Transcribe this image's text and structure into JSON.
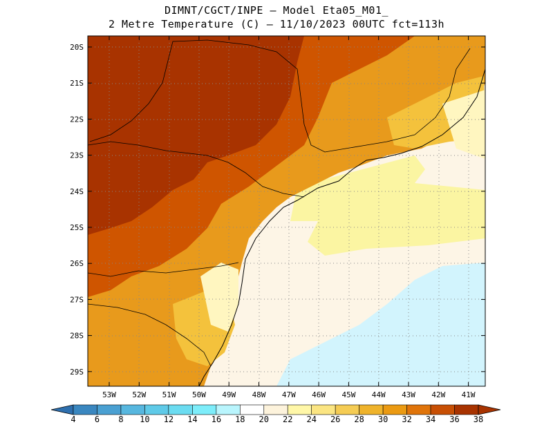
{
  "header": {
    "title_line1": "DIMNT/CGCT/INPE –  Model Eta05_M01_",
    "title_line2": "2 Metre Temperature (C) –  11/10/2023 00UTC fct=113h"
  },
  "map": {
    "lat_labels": [
      "20S",
      "21S",
      "22S",
      "23S",
      "24S",
      "25S",
      "26S",
      "27S",
      "28S",
      "29S"
    ],
    "lon_labels": [
      "53W",
      "52W",
      "51W",
      "50W",
      "49W",
      "48W",
      "47W",
      "46W",
      "45W",
      "44W",
      "43W",
      "42W",
      "41W"
    ],
    "regions": [
      "land-very-hot",
      "land-hot",
      "land-warm",
      "coast-mild",
      "ocean-cool",
      "ocean-cold"
    ],
    "colors": {
      "land_very_hot": "#a83300",
      "land_hot": "#cf5500",
      "land_warm": "#e89a1c",
      "land_mild": "#f4c23c",
      "coast_pale": "#fff6c0",
      "ocean_cream": "#fdf5e6",
      "ocean_yellow": "#fbf5a2",
      "ocean_cyan": "#d2f4fd"
    }
  },
  "colorbar": {
    "labels": [
      "4",
      "6",
      "8",
      "10",
      "12",
      "14",
      "16",
      "18",
      "20",
      "22",
      "24",
      "26",
      "28",
      "30",
      "32",
      "34",
      "36",
      "38"
    ],
    "colors": [
      "#2e6fae",
      "#3a87c0",
      "#4aa0d2",
      "#57b7df",
      "#5fcae8",
      "#6bdcf1",
      "#7dedfa",
      "#b9f5fd",
      "#ffffff",
      "#fdf3dc",
      "#fff7a8",
      "#fbe582",
      "#f5cc54",
      "#efb32b",
      "#eb9a12",
      "#e0740a",
      "#c84f04",
      "#a83300"
    ]
  }
}
